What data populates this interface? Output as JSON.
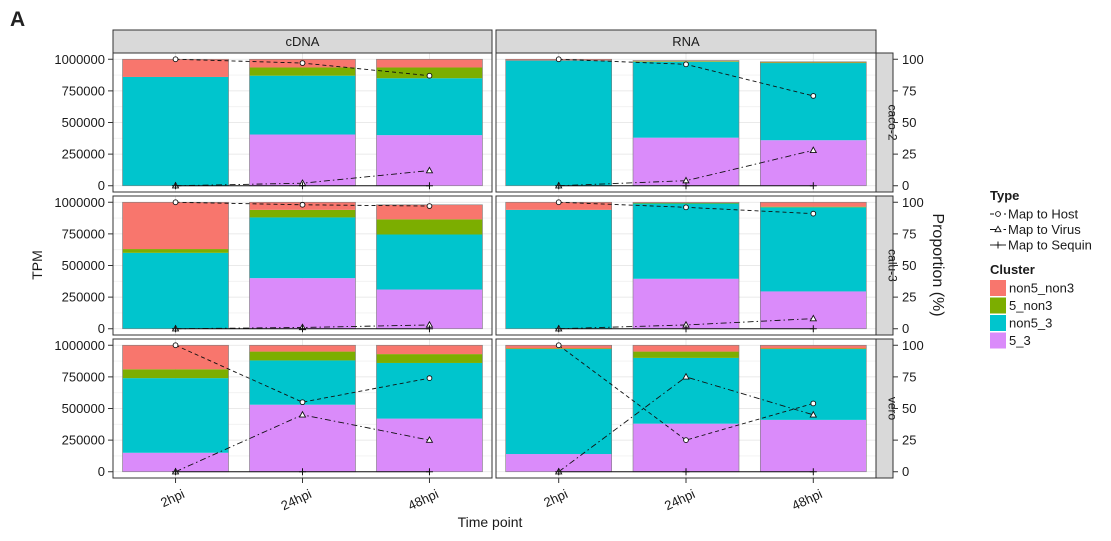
{
  "panel_label": "A",
  "chart_data": {
    "type": "bar",
    "subtype": "faceted stacked bar with overlaid proportion lines",
    "facet_columns": [
      "cDNA",
      "RNA"
    ],
    "facet_rows": [
      "caco-2",
      "calu-3",
      "vero"
    ],
    "categories": [
      "2hpi",
      "24hpi",
      "48hpi"
    ],
    "xlabel": "Time point",
    "ylabel": "TPM",
    "ylabel_right": "Proportion (%)",
    "ylim": [
      0,
      1000000
    ],
    "yticks": [
      "0",
      "250000",
      "500000",
      "750000",
      "1000000"
    ],
    "ylim_right": [
      0,
      100
    ],
    "yticks_right": [
      "0",
      "25",
      "50",
      "75",
      "100"
    ],
    "grid": true,
    "legend_position": "right",
    "stack_order": [
      "5_3",
      "non5_3",
      "5_non3",
      "non5_non3"
    ],
    "legend": {
      "cluster_title": "Cluster",
      "clusters": [
        {
          "key": "non5_non3",
          "label": "non5_non3",
          "color": "#F8766D"
        },
        {
          "key": "5_non3",
          "label": "5_non3",
          "color": "#7CAE00"
        },
        {
          "key": "non5_3",
          "label": "non5_3",
          "color": "#00C5CD"
        },
        {
          "key": "5_3",
          "label": "5_3",
          "color": "#DA8BFA"
        }
      ],
      "type_title": "Type",
      "types": [
        {
          "key": "host",
          "label": "Map to Host",
          "marker": "circle",
          "dash": "4,3"
        },
        {
          "key": "virus",
          "label": "Map to Virus",
          "marker": "triangle",
          "dash": "6,3,1.5,3"
        },
        {
          "key": "sequin",
          "label": "Map to Sequin",
          "marker": "plus",
          "dash": ""
        }
      ]
    },
    "panels": [
      {
        "row": "caco-2",
        "col": "cDNA",
        "stacks": {
          "5_3": [
            0,
            405000,
            400000
          ],
          "non5_3": [
            860000,
            465000,
            450000
          ],
          "5_non3": [
            0,
            65000,
            85000
          ],
          "non5_non3": [
            140000,
            65000,
            65000
          ]
        },
        "proportion": {
          "host": [
            100,
            97,
            87
          ],
          "virus": [
            0,
            2,
            12
          ],
          "sequin": [
            0,
            0,
            0
          ]
        }
      },
      {
        "row": "caco-2",
        "col": "RNA",
        "stacks": {
          "5_3": [
            0,
            380000,
            360000
          ],
          "non5_3": [
            990000,
            600000,
            610000
          ],
          "5_non3": [
            0,
            5000,
            5000
          ],
          "non5_non3": [
            10000,
            5000,
            5000
          ]
        },
        "proportion": {
          "host": [
            100,
            96,
            71
          ],
          "virus": [
            0,
            4,
            28
          ],
          "sequin": [
            0,
            0,
            0
          ]
        }
      },
      {
        "row": "calu-3",
        "col": "cDNA",
        "stacks": {
          "5_3": [
            0,
            400000,
            310000
          ],
          "non5_3": [
            600000,
            480000,
            435000
          ],
          "5_non3": [
            30000,
            60000,
            120000
          ],
          "non5_non3": [
            370000,
            60000,
            115000
          ]
        },
        "proportion": {
          "host": [
            100,
            98,
            97
          ],
          "virus": [
            0,
            1,
            3
          ],
          "sequin": [
            0,
            0,
            0
          ]
        }
      },
      {
        "row": "calu-3",
        "col": "RNA",
        "stacks": {
          "5_3": [
            0,
            395000,
            295000
          ],
          "non5_3": [
            940000,
            595000,
            665000
          ],
          "5_non3": [
            0,
            5000,
            5000
          ],
          "non5_non3": [
            60000,
            5000,
            35000
          ]
        },
        "proportion": {
          "host": [
            100,
            96,
            91
          ],
          "virus": [
            0,
            3,
            8
          ],
          "sequin": [
            0,
            0,
            0
          ]
        }
      },
      {
        "row": "vero",
        "col": "cDNA",
        "stacks": {
          "5_3": [
            150000,
            530000,
            420000
          ],
          "non5_3": [
            590000,
            350000,
            440000
          ],
          "5_non3": [
            70000,
            70000,
            70000
          ],
          "non5_non3": [
            190000,
            50000,
            70000
          ]
        },
        "proportion": {
          "host": [
            100,
            55,
            74
          ],
          "virus": [
            0,
            45,
            25
          ],
          "sequin": [
            0,
            0,
            0
          ]
        }
      },
      {
        "row": "vero",
        "col": "RNA",
        "stacks": {
          "5_3": [
            140000,
            380000,
            410000
          ],
          "non5_3": [
            830000,
            520000,
            560000
          ],
          "5_non3": [
            5000,
            50000,
            5000
          ],
          "non5_non3": [
            25000,
            50000,
            25000
          ]
        },
        "proportion": {
          "host": [
            100,
            25,
            54
          ],
          "virus": [
            0,
            75,
            45
          ],
          "sequin": [
            0,
            0,
            0
          ]
        }
      }
    ]
  }
}
